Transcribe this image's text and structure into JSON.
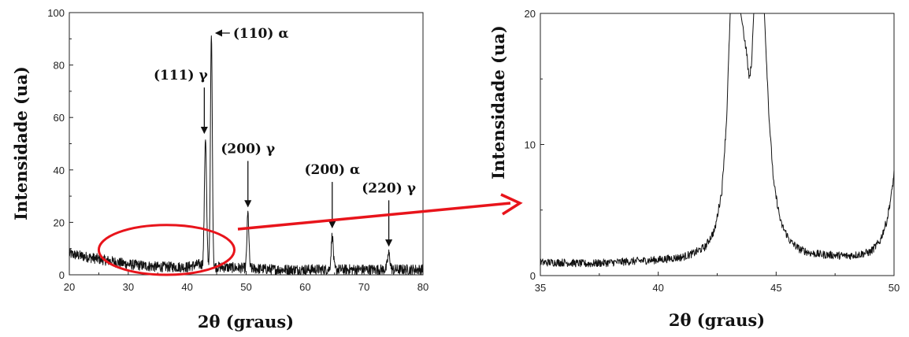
{
  "chart_data": [
    {
      "type": "line",
      "title": "",
      "xlabel": "2θ (graus)",
      "ylabel": "Intensidade (ua)",
      "xlim": [
        20,
        80
      ],
      "ylim": [
        0,
        100
      ],
      "x_ticks": [
        20,
        30,
        40,
        50,
        60,
        70,
        80
      ],
      "y_ticks": [
        0,
        20,
        40,
        60,
        80,
        100
      ],
      "grid": false,
      "background_level": [
        [
          20,
          8
        ],
        [
          25,
          6
        ],
        [
          30,
          4
        ],
        [
          35,
          3
        ],
        [
          40,
          3
        ],
        [
          42,
          4
        ],
        [
          45,
          3
        ],
        [
          50,
          2.5
        ],
        [
          55,
          2
        ],
        [
          60,
          2
        ],
        [
          70,
          2
        ],
        [
          80,
          2
        ]
      ],
      "noise_amplitude": 2,
      "peaks": [
        {
          "x": 43.1,
          "height": 49,
          "width": 0.5
        },
        {
          "x": 44.1,
          "height": 88,
          "width": 0.45
        },
        {
          "x": 50.3,
          "height": 21,
          "width": 0.45
        },
        {
          "x": 64.6,
          "height": 13,
          "width": 0.5
        },
        {
          "x": 74.2,
          "height": 6,
          "width": 0.6
        }
      ],
      "annotations": [
        {
          "label": "(111) γ",
          "x": 42.9,
          "y": 54
        },
        {
          "label": "(110) α",
          "x": 44.3,
          "y": 91
        },
        {
          "label": "(200) γ",
          "x": 50.3,
          "y": 26
        },
        {
          "label": "(200) α",
          "x": 64.6,
          "y": 18
        },
        {
          "label": "(220) γ",
          "x": 74.2,
          "y": 11
        }
      ],
      "highlight": {
        "shape": "ellipse",
        "color": "#e8141b",
        "x_range": [
          25,
          48
        ],
        "y_range": [
          0,
          19
        ]
      }
    },
    {
      "type": "line",
      "title": "",
      "xlabel": "2θ (graus)",
      "ylabel": "Intensidade (ua)",
      "xlim": [
        35,
        50
      ],
      "ylim": [
        0,
        20
      ],
      "x_ticks": [
        35,
        40,
        45,
        50
      ],
      "y_ticks": [
        0,
        10,
        20
      ],
      "grid": false,
      "clipped_peaks": [
        43.1,
        44.1
      ],
      "key_points": [
        [
          35,
          1.0
        ],
        [
          36,
          1.0
        ],
        [
          37,
          0.9
        ],
        [
          38,
          1.0
        ],
        [
          39,
          1.1
        ],
        [
          40,
          1.2
        ],
        [
          41,
          1.4
        ],
        [
          41.5,
          1.7
        ],
        [
          42,
          2.2
        ],
        [
          42.4,
          3.5
        ],
        [
          42.7,
          6.5
        ],
        [
          42.9,
          12
        ],
        [
          43.05,
          20
        ],
        [
          43.1,
          20
        ],
        [
          43.3,
          20
        ],
        [
          43.5,
          20
        ],
        [
          43.75,
          17
        ],
        [
          43.85,
          15
        ],
        [
          43.95,
          16
        ],
        [
          44.05,
          20
        ],
        [
          44.1,
          20
        ],
        [
          44.5,
          20
        ],
        [
          44.7,
          12
        ],
        [
          44.9,
          7
        ],
        [
          45.2,
          4
        ],
        [
          45.6,
          2.6
        ],
        [
          46,
          2.0
        ],
        [
          46.5,
          1.7
        ],
        [
          47,
          1.6
        ],
        [
          48,
          1.5
        ],
        [
          48.5,
          1.6
        ],
        [
          49,
          1.8
        ],
        [
          49.4,
          2.6
        ],
        [
          49.7,
          4.2
        ],
        [
          49.9,
          6.3
        ],
        [
          50,
          7.8
        ]
      ],
      "noise_amplitude": 0.3
    }
  ],
  "connector": {
    "color": "#e8141b",
    "from": "highlight",
    "to": "zoom-panel"
  }
}
